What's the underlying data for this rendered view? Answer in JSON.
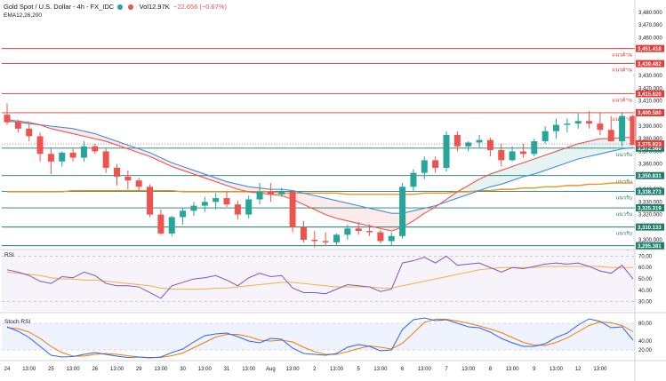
{
  "header": {
    "symbol": "Gold Spot / U.S. Dollar - 4h - FX_IDC",
    "volume": "Vol12.97K",
    "change": "−22.656 (−0.67%)",
    "ema": "EMA12,26,200"
  },
  "rsi_label": "RSI",
  "stoch_label": "Stoch RSI",
  "colors": {
    "up": "#26a69a",
    "down": "#ef5350",
    "ema12": "#ef5350",
    "ema26": "#3f8fe0",
    "ema200": "#e8961e",
    "res": "#e53935",
    "sup": "#1e7d6b",
    "rsi": "#7e57c2",
    "k": "#2962ff",
    "d": "#f57c00"
  },
  "chart_data": {
    "type": "candlestick",
    "ylim": [
      3293,
      3487
    ],
    "y_ticks": [
      3480,
      3470,
      3460,
      3450,
      3440,
      3430,
      3420,
      3410,
      3400,
      3390,
      3380,
      3370,
      3360,
      3350,
      3340,
      3330,
      3320,
      3310,
      3300
    ],
    "x_labels": [
      "24",
      "13:00",
      "25",
      "13:00",
      "26",
      "13:00",
      "29",
      "13:00",
      "30",
      "13:00",
      "31",
      "13:00",
      "Aug",
      "13:00",
      "2",
      "13:00",
      "5",
      "13:00",
      "6",
      "13:00",
      "7",
      "13:00",
      "8",
      "13:00",
      "9",
      "13:00",
      "12",
      "13:00"
    ],
    "x_label_slots": [
      0,
      2,
      4,
      6,
      8,
      10,
      12,
      14,
      16,
      18,
      20,
      22,
      24,
      26,
      28,
      30,
      32,
      34,
      36,
      38,
      40,
      42,
      44,
      46,
      48,
      50,
      52,
      54
    ],
    "candles": [
      [
        3399,
        3408,
        3391,
        3393
      ],
      [
        3393,
        3395,
        3385,
        3388
      ],
      [
        3388,
        3392,
        3378,
        3382
      ],
      [
        3382,
        3385,
        3362,
        3368
      ],
      [
        3368,
        3373,
        3352,
        3362
      ],
      [
        3362,
        3370,
        3358,
        3369
      ],
      [
        3369,
        3372,
        3362,
        3365
      ],
      [
        3365,
        3378,
        3362,
        3374
      ],
      [
        3374,
        3376,
        3368,
        3370
      ],
      [
        3370,
        3372,
        3353,
        3357
      ],
      [
        3357,
        3360,
        3343,
        3350
      ],
      [
        3350,
        3355,
        3340,
        3347
      ],
      [
        3347,
        3349,
        3338,
        3342
      ],
      [
        3342,
        3344,
        3318,
        3320
      ],
      [
        3320,
        3324,
        3304,
        3305
      ],
      [
        3305,
        3319,
        3303,
        3318
      ],
      [
        3318,
        3325,
        3312,
        3323
      ],
      [
        3323,
        3330,
        3319,
        3327
      ],
      [
        3327,
        3334,
        3322,
        3330
      ],
      [
        3330,
        3337,
        3324,
        3333
      ],
      [
        3333,
        3338,
        3326,
        3328
      ],
      [
        3328,
        3331,
        3316,
        3320
      ],
      [
        3320,
        3335,
        3317,
        3332
      ],
      [
        3332,
        3345,
        3328,
        3338
      ],
      [
        3338,
        3345,
        3330,
        3336
      ],
      [
        3336,
        3341,
        3334,
        3338
      ],
      [
        3338,
        3339,
        3306,
        3310
      ],
      [
        3310,
        3315,
        3298,
        3300
      ],
      [
        3300,
        3307,
        3294,
        3299
      ],
      [
        3299,
        3306,
        3295,
        3298
      ],
      [
        3298,
        3305,
        3296,
        3304
      ],
      [
        3304,
        3312,
        3300,
        3309
      ],
      [
        3309,
        3314,
        3304,
        3307
      ],
      [
        3307,
        3312,
        3303,
        3306
      ],
      [
        3306,
        3308,
        3297,
        3299
      ],
      [
        3299,
        3306,
        3295,
        3303
      ],
      [
        3303,
        3345,
        3301,
        3342
      ],
      [
        3342,
        3356,
        3338,
        3353
      ],
      [
        3353,
        3366,
        3348,
        3363
      ],
      [
        3363,
        3366,
        3353,
        3357
      ],
      [
        3357,
        3386,
        3354,
        3383
      ],
      [
        3383,
        3386,
        3370,
        3374
      ],
      [
        3374,
        3378,
        3370,
        3377
      ],
      [
        3377,
        3383,
        3373,
        3379
      ],
      [
        3379,
        3381,
        3366,
        3371
      ],
      [
        3371,
        3376,
        3358,
        3363
      ],
      [
        3363,
        3374,
        3362,
        3370
      ],
      [
        3370,
        3376,
        3365,
        3368
      ],
      [
        3368,
        3380,
        3366,
        3378
      ],
      [
        3378,
        3390,
        3376,
        3386
      ],
      [
        3386,
        3396,
        3380,
        3391
      ],
      [
        3391,
        3396,
        3385,
        3392
      ],
      [
        3392,
        3400,
        3388,
        3394
      ],
      [
        3394,
        3402,
        3388,
        3392
      ],
      [
        3392,
        3401,
        3383,
        3387
      ],
      [
        3387,
        3398,
        3378,
        3378
      ],
      [
        3378,
        3401,
        3374,
        3398
      ],
      [
        3398,
        3399,
        3376,
        3375
      ]
    ],
    "series": [
      {
        "name": "EMA12",
        "values": [
          3395,
          3394,
          3393,
          3391,
          3388,
          3386,
          3384,
          3382,
          3380,
          3378,
          3375,
          3372,
          3369,
          3366,
          3362,
          3358,
          3355,
          3352,
          3349,
          3346,
          3343,
          3340,
          3338,
          3337,
          3336,
          3335,
          3332,
          3328,
          3324,
          3320,
          3317,
          3315,
          3313,
          3311,
          3309,
          3307,
          3310,
          3315,
          3321,
          3326,
          3332,
          3338,
          3343,
          3348,
          3352,
          3355,
          3358,
          3361,
          3364,
          3367,
          3370,
          3373,
          3376,
          3378,
          3380,
          3380,
          3381,
          3381
        ]
      },
      {
        "name": "EMA26",
        "values": [
          3394,
          3393,
          3392,
          3391,
          3390,
          3389,
          3388,
          3386,
          3384,
          3381,
          3378,
          3375,
          3372,
          3369,
          3365,
          3361,
          3358,
          3355,
          3352,
          3349,
          3346,
          3344,
          3342,
          3341,
          3340,
          3340,
          3339,
          3337,
          3335,
          3333,
          3331,
          3329,
          3327,
          3325,
          3323,
          3321,
          3321,
          3323,
          3325,
          3327,
          3330,
          3333,
          3336,
          3339,
          3342,
          3344,
          3347,
          3350,
          3352,
          3355,
          3358,
          3361,
          3364,
          3366,
          3368,
          3370,
          3372,
          3373
        ]
      },
      {
        "name": "EMA200",
        "values": [
          3338,
          3338,
          3338,
          3338,
          3338,
          3338,
          3339,
          3339,
          3339,
          3339,
          3339,
          3339,
          3339,
          3339,
          3339,
          3339,
          3338,
          3338,
          3338,
          3338,
          3338,
          3338,
          3338,
          3338,
          3338,
          3337,
          3337,
          3337,
          3337,
          3337,
          3337,
          3336,
          3336,
          3336,
          3336,
          3336,
          3336,
          3336,
          3337,
          3337,
          3337,
          3338,
          3338,
          3339,
          3339,
          3340,
          3340,
          3341,
          3341,
          3342,
          3342,
          3343,
          3343,
          3344,
          3344,
          3345,
          3345,
          3345
        ]
      }
    ],
    "resistance_levels": [
      {
        "price": 3451.418,
        "label": "3,451.418",
        "tag": "แนวต้าน"
      },
      {
        "price": 3439.482,
        "label": "3,439.482",
        "tag": "แนวต้าน"
      },
      {
        "price": 3415.62,
        "label": "3,415.620",
        "tag": "แนวต้าน"
      },
      {
        "price": 3400.58,
        "label": "3,400.580",
        "tag": "แนวต้าน"
      }
    ],
    "support_levels": [
      {
        "price": 3372.56,
        "label": "3,372.560",
        "tag": "แนวรับ"
      },
      {
        "price": 3350.831,
        "label": "3,350.831",
        "tag": "แนวรับ"
      },
      {
        "price": 3338.273,
        "label": "3,338.273",
        "tag": "แนวรับ"
      },
      {
        "price": 3325.319,
        "label": "3,325.319",
        "tag": "แนวรับ"
      },
      {
        "price": 3310.133,
        "label": "3,310.133",
        "tag": "แนวรับ"
      },
      {
        "price": 3295.381,
        "label": "3,295.381",
        "tag": "แนวรับ"
      }
    ],
    "current_price": {
      "price": 3375.923,
      "label": "3,375.923"
    },
    "rsi": {
      "ylim": [
        22,
        75
      ],
      "ticks": [
        70,
        60,
        50,
        40,
        30
      ],
      "values": [
        58,
        56,
        53,
        48,
        46,
        52,
        51,
        56,
        53,
        46,
        44,
        44,
        43,
        38,
        33,
        44,
        47,
        50,
        51,
        53,
        49,
        44,
        51,
        55,
        52,
        53,
        42,
        38,
        38,
        37,
        41,
        45,
        44,
        43,
        39,
        41,
        64,
        66,
        69,
        64,
        70,
        62,
        63,
        64,
        60,
        56,
        60,
        59,
        61,
        63,
        64,
        63,
        64,
        61,
        57,
        55,
        62,
        50
      ],
      "ma": [
        56,
        55,
        54,
        53,
        51,
        50,
        50,
        49,
        49,
        48,
        47,
        46,
        45,
        44,
        42,
        41,
        41,
        41,
        41,
        42,
        42,
        43,
        44,
        45,
        46,
        47,
        47,
        46,
        45,
        44,
        43,
        43,
        43,
        43,
        42,
        42,
        44,
        46,
        48,
        50,
        52,
        54,
        56,
        58,
        59,
        60,
        60,
        60,
        60,
        61,
        61,
        61,
        61,
        61,
        61,
        60,
        60,
        60
      ]
    },
    "stoch": {
      "ylim": [
        0,
        100
      ],
      "ticks": [
        80,
        40,
        20
      ],
      "k": [
        72,
        62,
        48,
        28,
        8,
        4,
        5,
        10,
        14,
        10,
        6,
        3,
        4,
        2,
        4,
        14,
        22,
        38,
        52,
        56,
        58,
        50,
        40,
        36,
        46,
        44,
        24,
        12,
        10,
        8,
        12,
        26,
        32,
        28,
        18,
        20,
        66,
        88,
        92,
        86,
        88,
        80,
        72,
        70,
        60,
        46,
        36,
        28,
        28,
        34,
        48,
        58,
        76,
        90,
        84,
        70,
        72,
        42
      ],
      "d": [
        70,
        68,
        60,
        46,
        28,
        14,
        6,
        6,
        10,
        12,
        10,
        7,
        4,
        3,
        3,
        7,
        13,
        25,
        37,
        49,
        55,
        55,
        50,
        42,
        40,
        42,
        38,
        26,
        16,
        10,
        10,
        16,
        23,
        29,
        26,
        22,
        35,
        58,
        82,
        89,
        89,
        85,
        80,
        74,
        67,
        59,
        48,
        37,
        31,
        30,
        37,
        47,
        61,
        75,
        83,
        81,
        75,
        61
      ]
    }
  }
}
